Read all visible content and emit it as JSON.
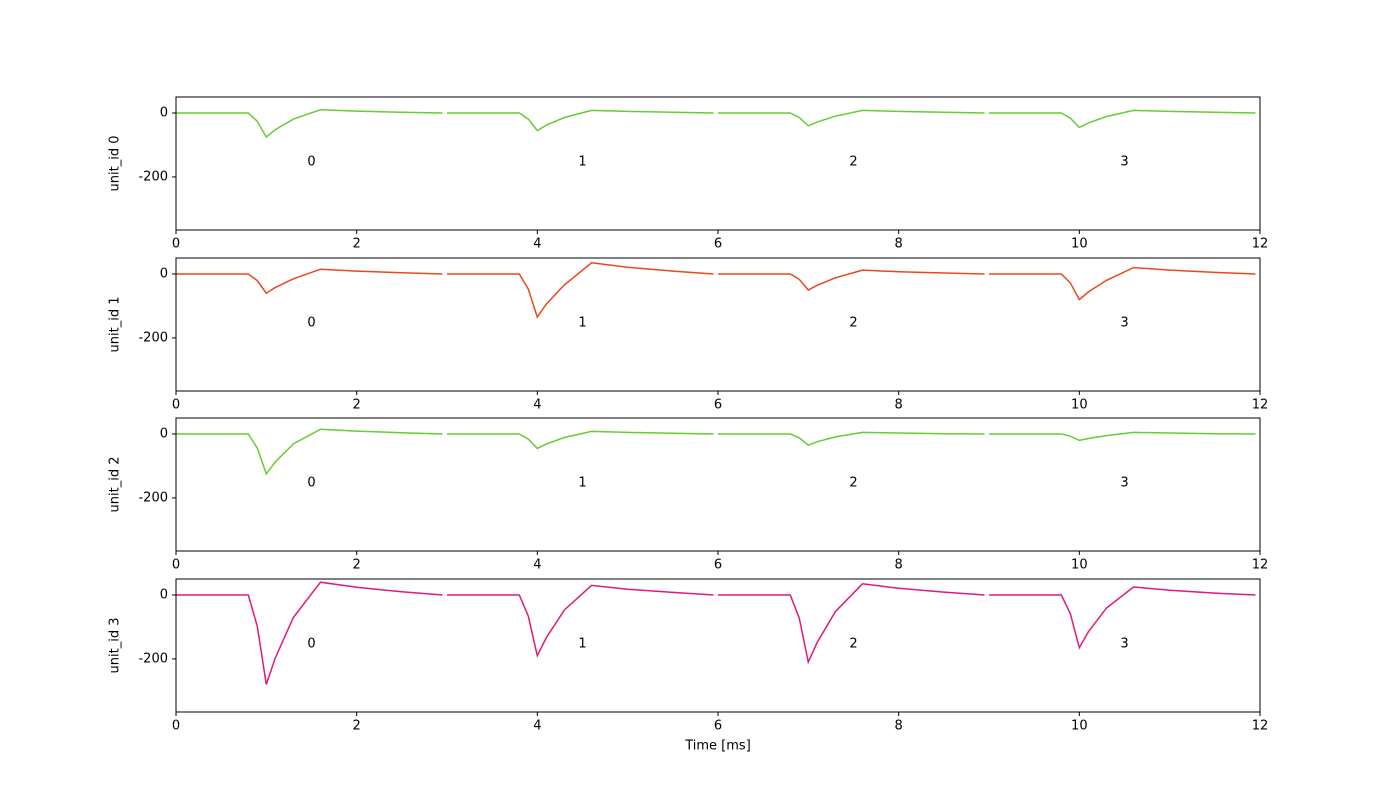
{
  "chart_data": [
    {
      "type": "line",
      "ylabel": "unit_id 0",
      "xlim": [
        0,
        12
      ],
      "ylim": [
        -366,
        50
      ],
      "xticks": [
        0,
        2,
        4,
        6,
        8,
        10,
        12
      ],
      "yticks": [
        -200,
        0
      ],
      "annotations": [
        {
          "text": "0",
          "x": 1.5,
          "y": -153
        },
        {
          "text": "1",
          "x": 4.5,
          "y": -153
        },
        {
          "text": "2",
          "x": 7.5,
          "y": -153
        },
        {
          "text": "3",
          "x": 10.5,
          "y": -153
        }
      ],
      "series": [
        {
          "color": "#66cc33",
          "x": [
            0,
            0.8,
            0.9,
            1.0,
            1.1,
            1.3,
            1.6,
            2.0,
            2.5,
            2.95
          ],
          "values": [
            0,
            0,
            -26,
            -75,
            -52,
            -19,
            10,
            6,
            2,
            0
          ]
        },
        {
          "color": "#66cc33",
          "x": [
            3,
            3.8,
            3.9,
            4.0,
            4.1,
            4.3,
            4.6,
            5.0,
            5.5,
            5.95
          ],
          "values": [
            0,
            0,
            -19,
            -55,
            -38,
            -14,
            8,
            5,
            2,
            0
          ]
        },
        {
          "color": "#66cc33",
          "x": [
            6,
            6.8,
            6.9,
            7.0,
            7.1,
            7.3,
            7.6,
            8.0,
            8.5,
            8.95
          ],
          "values": [
            0,
            0,
            -14,
            -40,
            -28,
            -10,
            8,
            5,
            2,
            0
          ]
        },
        {
          "color": "#66cc33",
          "x": [
            9,
            9.8,
            9.9,
            10.0,
            10.1,
            10.3,
            10.6,
            11.0,
            11.5,
            11.95
          ],
          "values": [
            0,
            0,
            -16,
            -45,
            -31,
            -11,
            8,
            5,
            2,
            0
          ]
        }
      ]
    },
    {
      "type": "line",
      "ylabel": "unit_id 1",
      "xlim": [
        0,
        12
      ],
      "ylim": [
        -366,
        50
      ],
      "xticks": [
        0,
        2,
        4,
        6,
        8,
        10,
        12
      ],
      "yticks": [
        -200,
        0
      ],
      "annotations": [
        {
          "text": "0",
          "x": 1.5,
          "y": -153
        },
        {
          "text": "1",
          "x": 4.5,
          "y": -153
        },
        {
          "text": "2",
          "x": 7.5,
          "y": -153
        },
        {
          "text": "3",
          "x": 10.5,
          "y": -153
        }
      ],
      "series": [
        {
          "color": "#e8481c",
          "x": [
            0,
            0.8,
            0.9,
            1.0,
            1.1,
            1.3,
            1.6,
            2.0,
            2.5,
            2.95
          ],
          "values": [
            0,
            0,
            -21,
            -60,
            -42,
            -15,
            15,
            9,
            4,
            0
          ]
        },
        {
          "color": "#e8481c",
          "x": [
            3,
            3.8,
            3.9,
            4.0,
            4.1,
            4.3,
            4.6,
            5.0,
            5.5,
            5.95
          ],
          "values": [
            0,
            0,
            -47,
            -135,
            -94,
            -34,
            35,
            21,
            9,
            0
          ]
        },
        {
          "color": "#e8481c",
          "x": [
            6,
            6.8,
            6.9,
            7.0,
            7.1,
            7.3,
            7.6,
            8.0,
            8.5,
            8.95
          ],
          "values": [
            0,
            0,
            -17,
            -50,
            -35,
            -12,
            12,
            7,
            3,
            0
          ]
        },
        {
          "color": "#e8481c",
          "x": [
            9,
            9.8,
            9.9,
            10.0,
            10.1,
            10.3,
            10.6,
            11.0,
            11.5,
            11.95
          ],
          "values": [
            0,
            0,
            -28,
            -80,
            -56,
            -20,
            20,
            12,
            5,
            0
          ]
        }
      ]
    },
    {
      "type": "line",
      "ylabel": "unit_id 2",
      "xlim": [
        0,
        12
      ],
      "ylim": [
        -366,
        50
      ],
      "xticks": [
        0,
        2,
        4,
        6,
        8,
        10,
        12
      ],
      "yticks": [
        -200,
        0
      ],
      "annotations": [
        {
          "text": "0",
          "x": 1.5,
          "y": -153
        },
        {
          "text": "1",
          "x": 4.5,
          "y": -153
        },
        {
          "text": "2",
          "x": 7.5,
          "y": -153
        },
        {
          "text": "3",
          "x": 10.5,
          "y": -153
        }
      ],
      "series": [
        {
          "color": "#66cc33",
          "x": [
            0,
            0.8,
            0.9,
            1.0,
            1.1,
            1.3,
            1.6,
            2.0,
            2.5,
            2.95
          ],
          "values": [
            0,
            0,
            -44,
            -125,
            -87,
            -31,
            15,
            9,
            4,
            0
          ]
        },
        {
          "color": "#66cc33",
          "x": [
            3,
            3.8,
            3.9,
            4.0,
            4.1,
            4.3,
            4.6,
            5.0,
            5.5,
            5.95
          ],
          "values": [
            0,
            0,
            -16,
            -45,
            -31,
            -11,
            8,
            5,
            2,
            0
          ]
        },
        {
          "color": "#66cc33",
          "x": [
            6,
            6.8,
            6.9,
            7.0,
            7.1,
            7.3,
            7.6,
            8.0,
            8.5,
            8.95
          ],
          "values": [
            0,
            0,
            -12,
            -35,
            -24,
            -9,
            5,
            3,
            1,
            0
          ]
        },
        {
          "color": "#66cc33",
          "x": [
            9,
            9.8,
            9.9,
            10.0,
            10.1,
            10.3,
            10.6,
            11.0,
            11.5,
            11.95
          ],
          "values": [
            0,
            0,
            -7,
            -20,
            -14,
            -5,
            5,
            3,
            1,
            0
          ]
        }
      ]
    },
    {
      "type": "line",
      "ylabel": "unit_id 3",
      "xlabel": "Time [ms]",
      "xlim": [
        0,
        12
      ],
      "ylim": [
        -366,
        50
      ],
      "xticks": [
        0,
        2,
        4,
        6,
        8,
        10,
        12
      ],
      "yticks": [
        -200,
        0
      ],
      "annotations": [
        {
          "text": "0",
          "x": 1.5,
          "y": -153
        },
        {
          "text": "1",
          "x": 4.5,
          "y": -153
        },
        {
          "text": "2",
          "x": 7.5,
          "y": -153
        },
        {
          "text": "3",
          "x": 10.5,
          "y": -153
        }
      ],
      "series": [
        {
          "color": "#e0197a",
          "x": [
            0,
            0.8,
            0.9,
            1.0,
            1.1,
            1.3,
            1.6,
            2.0,
            2.5,
            2.95
          ],
          "values": [
            0,
            0,
            -98,
            -280,
            -196,
            -70,
            40,
            24,
            10,
            0
          ]
        },
        {
          "color": "#e0197a",
          "x": [
            3,
            3.8,
            3.9,
            4.0,
            4.1,
            4.3,
            4.6,
            5.0,
            5.5,
            5.95
          ],
          "values": [
            0,
            0,
            -66,
            -190,
            -133,
            -47,
            30,
            18,
            8,
            0
          ]
        },
        {
          "color": "#e0197a",
          "x": [
            6,
            6.8,
            6.9,
            7.0,
            7.1,
            7.3,
            7.6,
            8.0,
            8.5,
            8.95
          ],
          "values": [
            0,
            0,
            -73,
            -210,
            -147,
            -52,
            35,
            21,
            9,
            0
          ]
        },
        {
          "color": "#e0197a",
          "x": [
            9,
            9.8,
            9.9,
            10.0,
            10.1,
            10.3,
            10.6,
            11.0,
            11.5,
            11.95
          ],
          "values": [
            0,
            0,
            -58,
            -165,
            -115,
            -41,
            25,
            15,
            6,
            0
          ]
        }
      ]
    }
  ]
}
